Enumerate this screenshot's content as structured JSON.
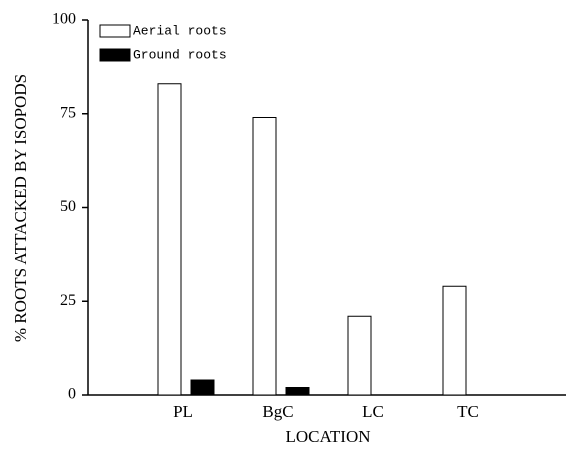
{
  "chart_data": {
    "type": "bar",
    "x_label": "LOCATION",
    "y_label": "% ROOTS ATTACKED BY ISOPODS",
    "categories": [
      "PL",
      "BgC",
      "LC",
      "TC"
    ],
    "series": [
      {
        "name": "Aerial roots",
        "color": "#ffffff",
        "values": [
          83,
          74,
          21,
          29
        ]
      },
      {
        "name": "Ground roots",
        "color": "#000000",
        "values": [
          4,
          2,
          0,
          0
        ]
      }
    ],
    "ylim": [
      0,
      100
    ],
    "yticks": [
      0,
      25,
      50,
      75,
      100
    ]
  }
}
